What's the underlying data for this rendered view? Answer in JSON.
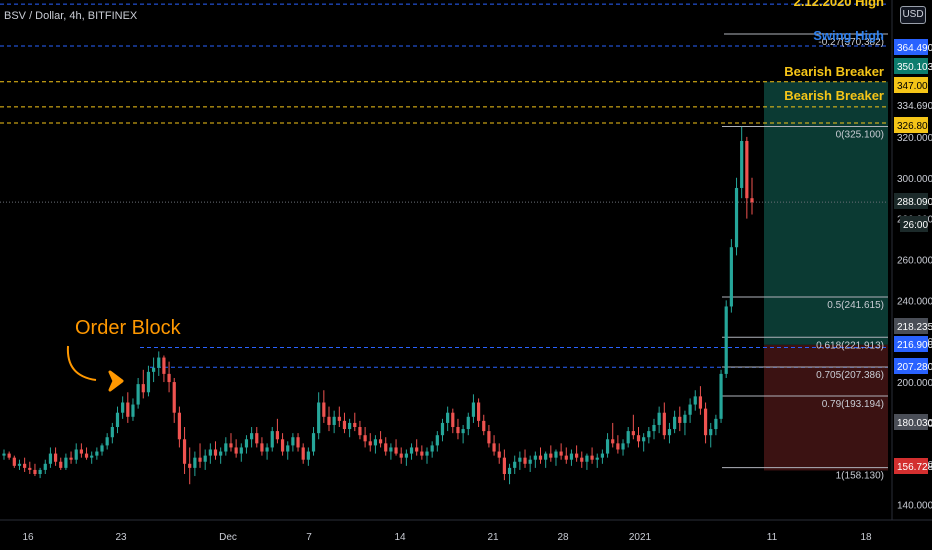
{
  "symbol": "BSV / Dollar, 4h, BITFINEX",
  "currency_button": "USD",
  "colors": {
    "background": "#000000",
    "blue_dashed": "#2962ff",
    "yellow_dashed": "#f5c518",
    "orange": "#ff9800",
    "up": "#26a69a",
    "down": "#ef5350",
    "profit_zone": "#0b3a33",
    "loss_zone": "#3b1212",
    "fib": "#b0b3bb"
  },
  "chart_data": {
    "type": "candlestick",
    "timeframe": "4h",
    "x_ticks": [
      "16",
      "23",
      "Dec",
      "7",
      "14",
      "21",
      "28",
      "2021",
      "11",
      "18"
    ],
    "y_ticks": [
      140,
      160,
      180,
      200,
      220,
      240,
      260,
      280,
      300,
      320
    ],
    "ylim": [
      132,
      387
    ],
    "price_tags": [
      {
        "value": "364.490",
        "style": "blue"
      },
      {
        "value": "350.103",
        "style": "teal"
      },
      {
        "value": "347.000",
        "style": "yellow"
      },
      {
        "value": "334.690",
        "style": "plain"
      },
      {
        "value": "326.800",
        "style": "yellow"
      },
      {
        "value": "288.090",
        "style": "dark"
      },
      {
        "value": "26:00",
        "style": "dark"
      },
      {
        "value": "218.235",
        "style": "gray"
      },
      {
        "value": "216.900",
        "style": "blue"
      },
      {
        "value": "207.280",
        "style": "blue"
      },
      {
        "value": "180.030",
        "style": "gray"
      },
      {
        "value": "156.728",
        "style": "red"
      }
    ],
    "horizontal_levels": [
      {
        "price": 385,
        "style": "blue-dashed"
      },
      {
        "price": 364.49,
        "style": "blue-dashed"
      },
      {
        "price": 347.0,
        "style": "yellow-dashed"
      },
      {
        "price": 334.69,
        "style": "yellow-dashed"
      },
      {
        "price": 326.8,
        "style": "yellow-dashed"
      },
      {
        "price": 216.9,
        "style": "blue-dashed"
      },
      {
        "price": 207.28,
        "style": "blue-dashed"
      },
      {
        "price": 288.09,
        "style": "gray-dotted"
      }
    ],
    "fib_levels": [
      {
        "label": "-0.27(370.382)",
        "price": 370.382
      },
      {
        "label": "0(325.100)",
        "price": 325.1
      },
      {
        "label": "0.5(241.615)",
        "price": 241.615
      },
      {
        "label": "0.618(221.913)",
        "price": 221.913
      },
      {
        "label": "0.705(207.386)",
        "price": 207.386
      },
      {
        "label": "0.79(193.194)",
        "price": 193.194
      },
      {
        "label": "1(158.130)",
        "price": 158.13
      }
    ],
    "annotations": [
      {
        "text": "2.12.2020 High"
      },
      {
        "text": "Swing High"
      },
      {
        "text": "Bearish Breaker"
      },
      {
        "text": "Bearish Breaker"
      },
      {
        "text": "Order Block"
      }
    ],
    "position": {
      "entry": 218.235,
      "target": 347.0,
      "stop": 156.728
    },
    "candles": [
      [
        164,
        167,
        162,
        165
      ],
      [
        165,
        166,
        162,
        163
      ],
      [
        163,
        164,
        158,
        159
      ],
      [
        159,
        162,
        157,
        160
      ],
      [
        160,
        163,
        156,
        158
      ],
      [
        158,
        161,
        155,
        157
      ],
      [
        157,
        160,
        154,
        155
      ],
      [
        155,
        158,
        153,
        157
      ],
      [
        157,
        162,
        155,
        160
      ],
      [
        160,
        168,
        158,
        165
      ],
      [
        165,
        168,
        159,
        161
      ],
      [
        161,
        163,
        157,
        158
      ],
      [
        158,
        165,
        157,
        163
      ],
      [
        163,
        166,
        160,
        162
      ],
      [
        162,
        170,
        160,
        167
      ],
      [
        167,
        170,
        163,
        165
      ],
      [
        165,
        168,
        162,
        163
      ],
      [
        163,
        166,
        160,
        164
      ],
      [
        164,
        168,
        162,
        166
      ],
      [
        166,
        170,
        164,
        169
      ],
      [
        169,
        175,
        167,
        173
      ],
      [
        173,
        180,
        170,
        178
      ],
      [
        178,
        188,
        175,
        185
      ],
      [
        185,
        193,
        182,
        190
      ],
      [
        190,
        195,
        180,
        183
      ],
      [
        183,
        192,
        181,
        189
      ],
      [
        189,
        202,
        187,
        199
      ],
      [
        199,
        206,
        192,
        195
      ],
      [
        195,
        208,
        193,
        205
      ],
      [
        205,
        212,
        200,
        207
      ],
      [
        207,
        215,
        203,
        212
      ],
      [
        212,
        213,
        200,
        204
      ],
      [
        204,
        210,
        195,
        200
      ],
      [
        200,
        202,
        180,
        185
      ],
      [
        185,
        188,
        168,
        172
      ],
      [
        172,
        178,
        155,
        160
      ],
      [
        160,
        168,
        150,
        158
      ],
      [
        158,
        166,
        154,
        163
      ],
      [
        163,
        170,
        158,
        161
      ],
      [
        161,
        167,
        157,
        164
      ],
      [
        164,
        170,
        160,
        167
      ],
      [
        167,
        171,
        162,
        164
      ],
      [
        164,
        168,
        160,
        166
      ],
      [
        166,
        173,
        164,
        170
      ],
      [
        170,
        175,
        166,
        168
      ],
      [
        168,
        172,
        163,
        165
      ],
      [
        165,
        170,
        161,
        168
      ],
      [
        168,
        174,
        165,
        172
      ],
      [
        172,
        178,
        168,
        175
      ],
      [
        175,
        178,
        168,
        170
      ],
      [
        170,
        173,
        164,
        166
      ],
      [
        166,
        170,
        162,
        168
      ],
      [
        168,
        178,
        166,
        176
      ],
      [
        176,
        182,
        170,
        172
      ],
      [
        172,
        175,
        164,
        166
      ],
      [
        166,
        171,
        162,
        169
      ],
      [
        169,
        175,
        166,
        173
      ],
      [
        173,
        175,
        166,
        168
      ],
      [
        168,
        170,
        160,
        162
      ],
      [
        162,
        168,
        159,
        166
      ],
      [
        166,
        178,
        164,
        175
      ],
      [
        175,
        195,
        172,
        190
      ],
      [
        190,
        196,
        180,
        183
      ],
      [
        183,
        188,
        176,
        179
      ],
      [
        179,
        186,
        175,
        183
      ],
      [
        183,
        188,
        178,
        181
      ],
      [
        181,
        185,
        175,
        177
      ],
      [
        177,
        182,
        173,
        180
      ],
      [
        180,
        185,
        176,
        178
      ],
      [
        178,
        181,
        172,
        174
      ],
      [
        174,
        178,
        168,
        171
      ],
      [
        171,
        175,
        166,
        169
      ],
      [
        169,
        174,
        165,
        172
      ],
      [
        172,
        176,
        168,
        170
      ],
      [
        170,
        173,
        164,
        166
      ],
      [
        166,
        170,
        162,
        168
      ],
      [
        168,
        172,
        164,
        165
      ],
      [
        165,
        168,
        160,
        163
      ],
      [
        163,
        167,
        159,
        165
      ],
      [
        165,
        170,
        162,
        168
      ],
      [
        168,
        172,
        164,
        166
      ],
      [
        166,
        169,
        162,
        164
      ],
      [
        164,
        168,
        160,
        166
      ],
      [
        166,
        171,
        163,
        169
      ],
      [
        169,
        176,
        166,
        174
      ],
      [
        174,
        182,
        171,
        180
      ],
      [
        180,
        188,
        176,
        185
      ],
      [
        185,
        187,
        175,
        178
      ],
      [
        178,
        182,
        172,
        175
      ],
      [
        175,
        179,
        170,
        177
      ],
      [
        177,
        185,
        174,
        183
      ],
      [
        183,
        194,
        180,
        190
      ],
      [
        190,
        192,
        178,
        181
      ],
      [
        181,
        184,
        174,
        176
      ],
      [
        176,
        179,
        168,
        170
      ],
      [
        170,
        174,
        164,
        166
      ],
      [
        166,
        170,
        160,
        163
      ],
      [
        163,
        167,
        152,
        155
      ],
      [
        155,
        160,
        150,
        158
      ],
      [
        158,
        164,
        155,
        161
      ],
      [
        161,
        166,
        157,
        163
      ],
      [
        163,
        167,
        158,
        160
      ],
      [
        160,
        164,
        156,
        162
      ],
      [
        162,
        166,
        158,
        164
      ],
      [
        164,
        168,
        160,
        162
      ],
      [
        162,
        166,
        158,
        165
      ],
      [
        165,
        169,
        161,
        163
      ],
      [
        163,
        167,
        159,
        166
      ],
      [
        166,
        170,
        162,
        164
      ],
      [
        164,
        168,
        160,
        162
      ],
      [
        162,
        167,
        159,
        165
      ],
      [
        165,
        169,
        161,
        163
      ],
      [
        163,
        166,
        158,
        161
      ],
      [
        161,
        165,
        157,
        164
      ],
      [
        164,
        168,
        160,
        162
      ],
      [
        162,
        165,
        158,
        163
      ],
      [
        163,
        167,
        160,
        165
      ],
      [
        165,
        175,
        163,
        172
      ],
      [
        172,
        180,
        168,
        170
      ],
      [
        170,
        174,
        165,
        167
      ],
      [
        167,
        172,
        164,
        170
      ],
      [
        170,
        178,
        168,
        176
      ],
      [
        176,
        184,
        172,
        174
      ],
      [
        174,
        178,
        168,
        171
      ],
      [
        171,
        175,
        166,
        173
      ],
      [
        173,
        178,
        170,
        176
      ],
      [
        176,
        182,
        172,
        179
      ],
      [
        179,
        188,
        175,
        185
      ],
      [
        185,
        190,
        172,
        174
      ],
      [
        174,
        180,
        170,
        177
      ],
      [
        177,
        186,
        175,
        183
      ],
      [
        183,
        188,
        176,
        180
      ],
      [
        180,
        186,
        174,
        184
      ],
      [
        184,
        192,
        180,
        189
      ],
      [
        189,
        196,
        186,
        193
      ],
      [
        193,
        198,
        184,
        187
      ],
      [
        187,
        190,
        170,
        174
      ],
      [
        174,
        180,
        168,
        177
      ],
      [
        177,
        184,
        174,
        182
      ],
      [
        182,
        206,
        180,
        204
      ],
      [
        204,
        240,
        202,
        237
      ],
      [
        237,
        270,
        234,
        266
      ],
      [
        266,
        300,
        262,
        295
      ],
      [
        295,
        325,
        290,
        318
      ],
      [
        318,
        320,
        280,
        290
      ],
      [
        290,
        300,
        282,
        288
      ]
    ]
  }
}
